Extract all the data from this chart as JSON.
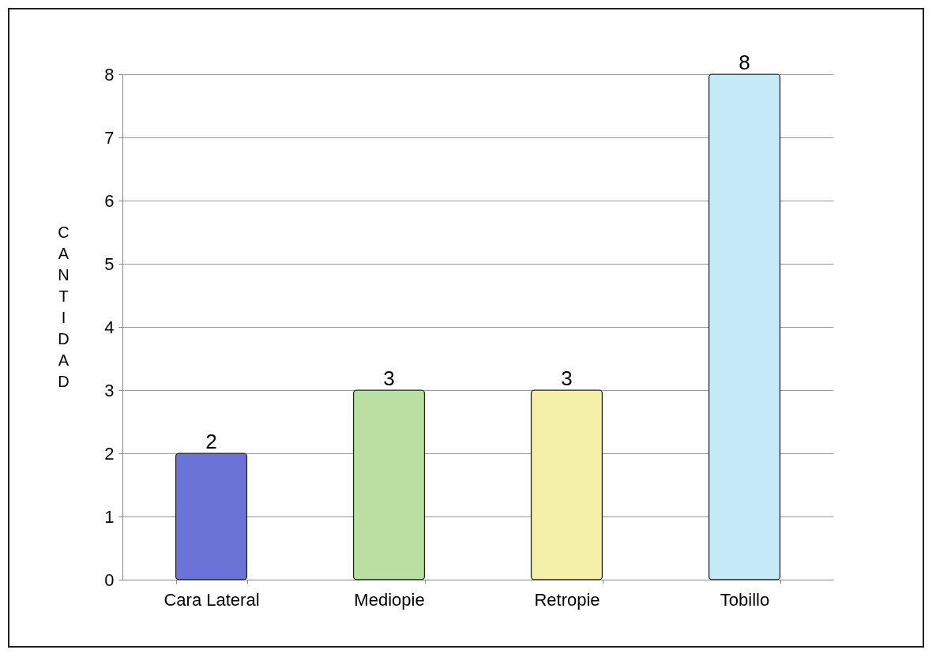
{
  "chart_data": {
    "type": "bar",
    "categories": [
      "Cara Lateral",
      "Mediopie",
      "Retropie",
      "Tobillo"
    ],
    "values": [
      2,
      3,
      3,
      8
    ],
    "colors": [
      "#6b74d6",
      "#b9e0a2",
      "#f4f0a9",
      "#c6ebf8"
    ],
    "ylabel": "CANTIDAD",
    "ylim": [
      0,
      8
    ],
    "yticks": [
      0,
      1,
      2,
      3,
      4,
      5,
      6,
      7,
      8
    ],
    "grid": "y",
    "data_labels": true
  }
}
